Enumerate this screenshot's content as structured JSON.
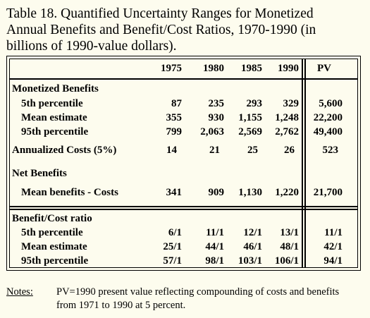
{
  "title": {
    "line1": "Table 18. Quantified Uncertainty Ranges for Monetized",
    "line2": "Annual Benefits and Benefit/Cost Ratios, 1970-1990 (in",
    "line3": "billions of 1990-value dollars)."
  },
  "header": {
    "years": [
      "1975",
      "1980",
      "1985",
      "1990"
    ],
    "pv": "PV"
  },
  "sections": {
    "monetized_label": "Monetized Benefits",
    "rows_benefits": [
      {
        "label": "5th percentile",
        "values": [
          "87",
          "235",
          "293",
          "329"
        ],
        "pv": "5,600"
      },
      {
        "label": "Mean estimate",
        "values": [
          "355",
          "930",
          "1,155",
          "1,248"
        ],
        "pv": "22,200"
      },
      {
        "label": "95th percentile",
        "values": [
          "799",
          "2,063",
          "2,569",
          "2,762"
        ],
        "pv": "49,400"
      }
    ],
    "costs": {
      "label": "Annualized Costs (5%)",
      "values": [
        "14",
        "21",
        "25",
        "26"
      ],
      "pv": "523"
    },
    "net_label": "Net Benefits",
    "net_row": {
      "label": "Mean benefits - Costs",
      "values": [
        "341",
        "909",
        "1,130",
        "1,220"
      ],
      "pv": "21,700"
    },
    "ratio_label": "Benefit/Cost ratio",
    "rows_ratio": [
      {
        "label": "5th percentile",
        "values": [
          "6/1",
          "11/1",
          "12/1",
          "13/1"
        ],
        "pv": "11/1"
      },
      {
        "label": "Mean estimate",
        "values": [
          "25/1",
          "44/1",
          "46/1",
          "48/1"
        ],
        "pv": "42/1"
      },
      {
        "label": "95th percentile",
        "values": [
          "57/1",
          "98/1",
          "103/1",
          "106/1"
        ],
        "pv": "94/1"
      }
    ]
  },
  "notes": {
    "label": "Notes:",
    "line1": "PV=1990 present value reflecting compounding of costs and benefits",
    "line2": "from 1971 to 1990 at 5 percent."
  }
}
